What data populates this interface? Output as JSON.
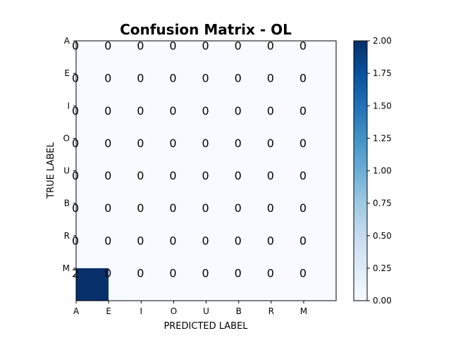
{
  "chart_data": {
    "type": "heatmap",
    "title": "Confusion Matrix - OL",
    "xlabel": "PREDICTED LABEL",
    "ylabel": "TRUE LABEL",
    "x_categories": [
      "A",
      "E",
      "I",
      "O",
      "U",
      "B",
      "R",
      "M"
    ],
    "y_categories": [
      "A",
      "E",
      "I",
      "O",
      "U",
      "B",
      "R",
      "M"
    ],
    "values": [
      [
        0,
        0,
        0,
        0,
        0,
        0,
        0,
        0
      ],
      [
        0,
        0,
        0,
        0,
        0,
        0,
        0,
        0
      ],
      [
        0,
        0,
        0,
        0,
        0,
        0,
        0,
        0
      ],
      [
        0,
        0,
        0,
        0,
        0,
        0,
        0,
        0
      ],
      [
        0,
        0,
        0,
        0,
        0,
        0,
        0,
        0
      ],
      [
        0,
        0,
        0,
        0,
        0,
        0,
        0,
        0
      ],
      [
        0,
        0,
        0,
        0,
        0,
        0,
        0,
        0
      ],
      [
        2,
        0,
        0,
        0,
        0,
        0,
        0,
        0
      ]
    ],
    "colormap": "Blues",
    "color_low": "#f7fbff",
    "color_high": "#08306b",
    "colorbar": {
      "range": [
        0,
        2
      ],
      "ticks": [
        "0.00",
        "0.25",
        "0.50",
        "0.75",
        "1.00",
        "1.25",
        "1.50",
        "1.75",
        "2.00"
      ]
    }
  }
}
